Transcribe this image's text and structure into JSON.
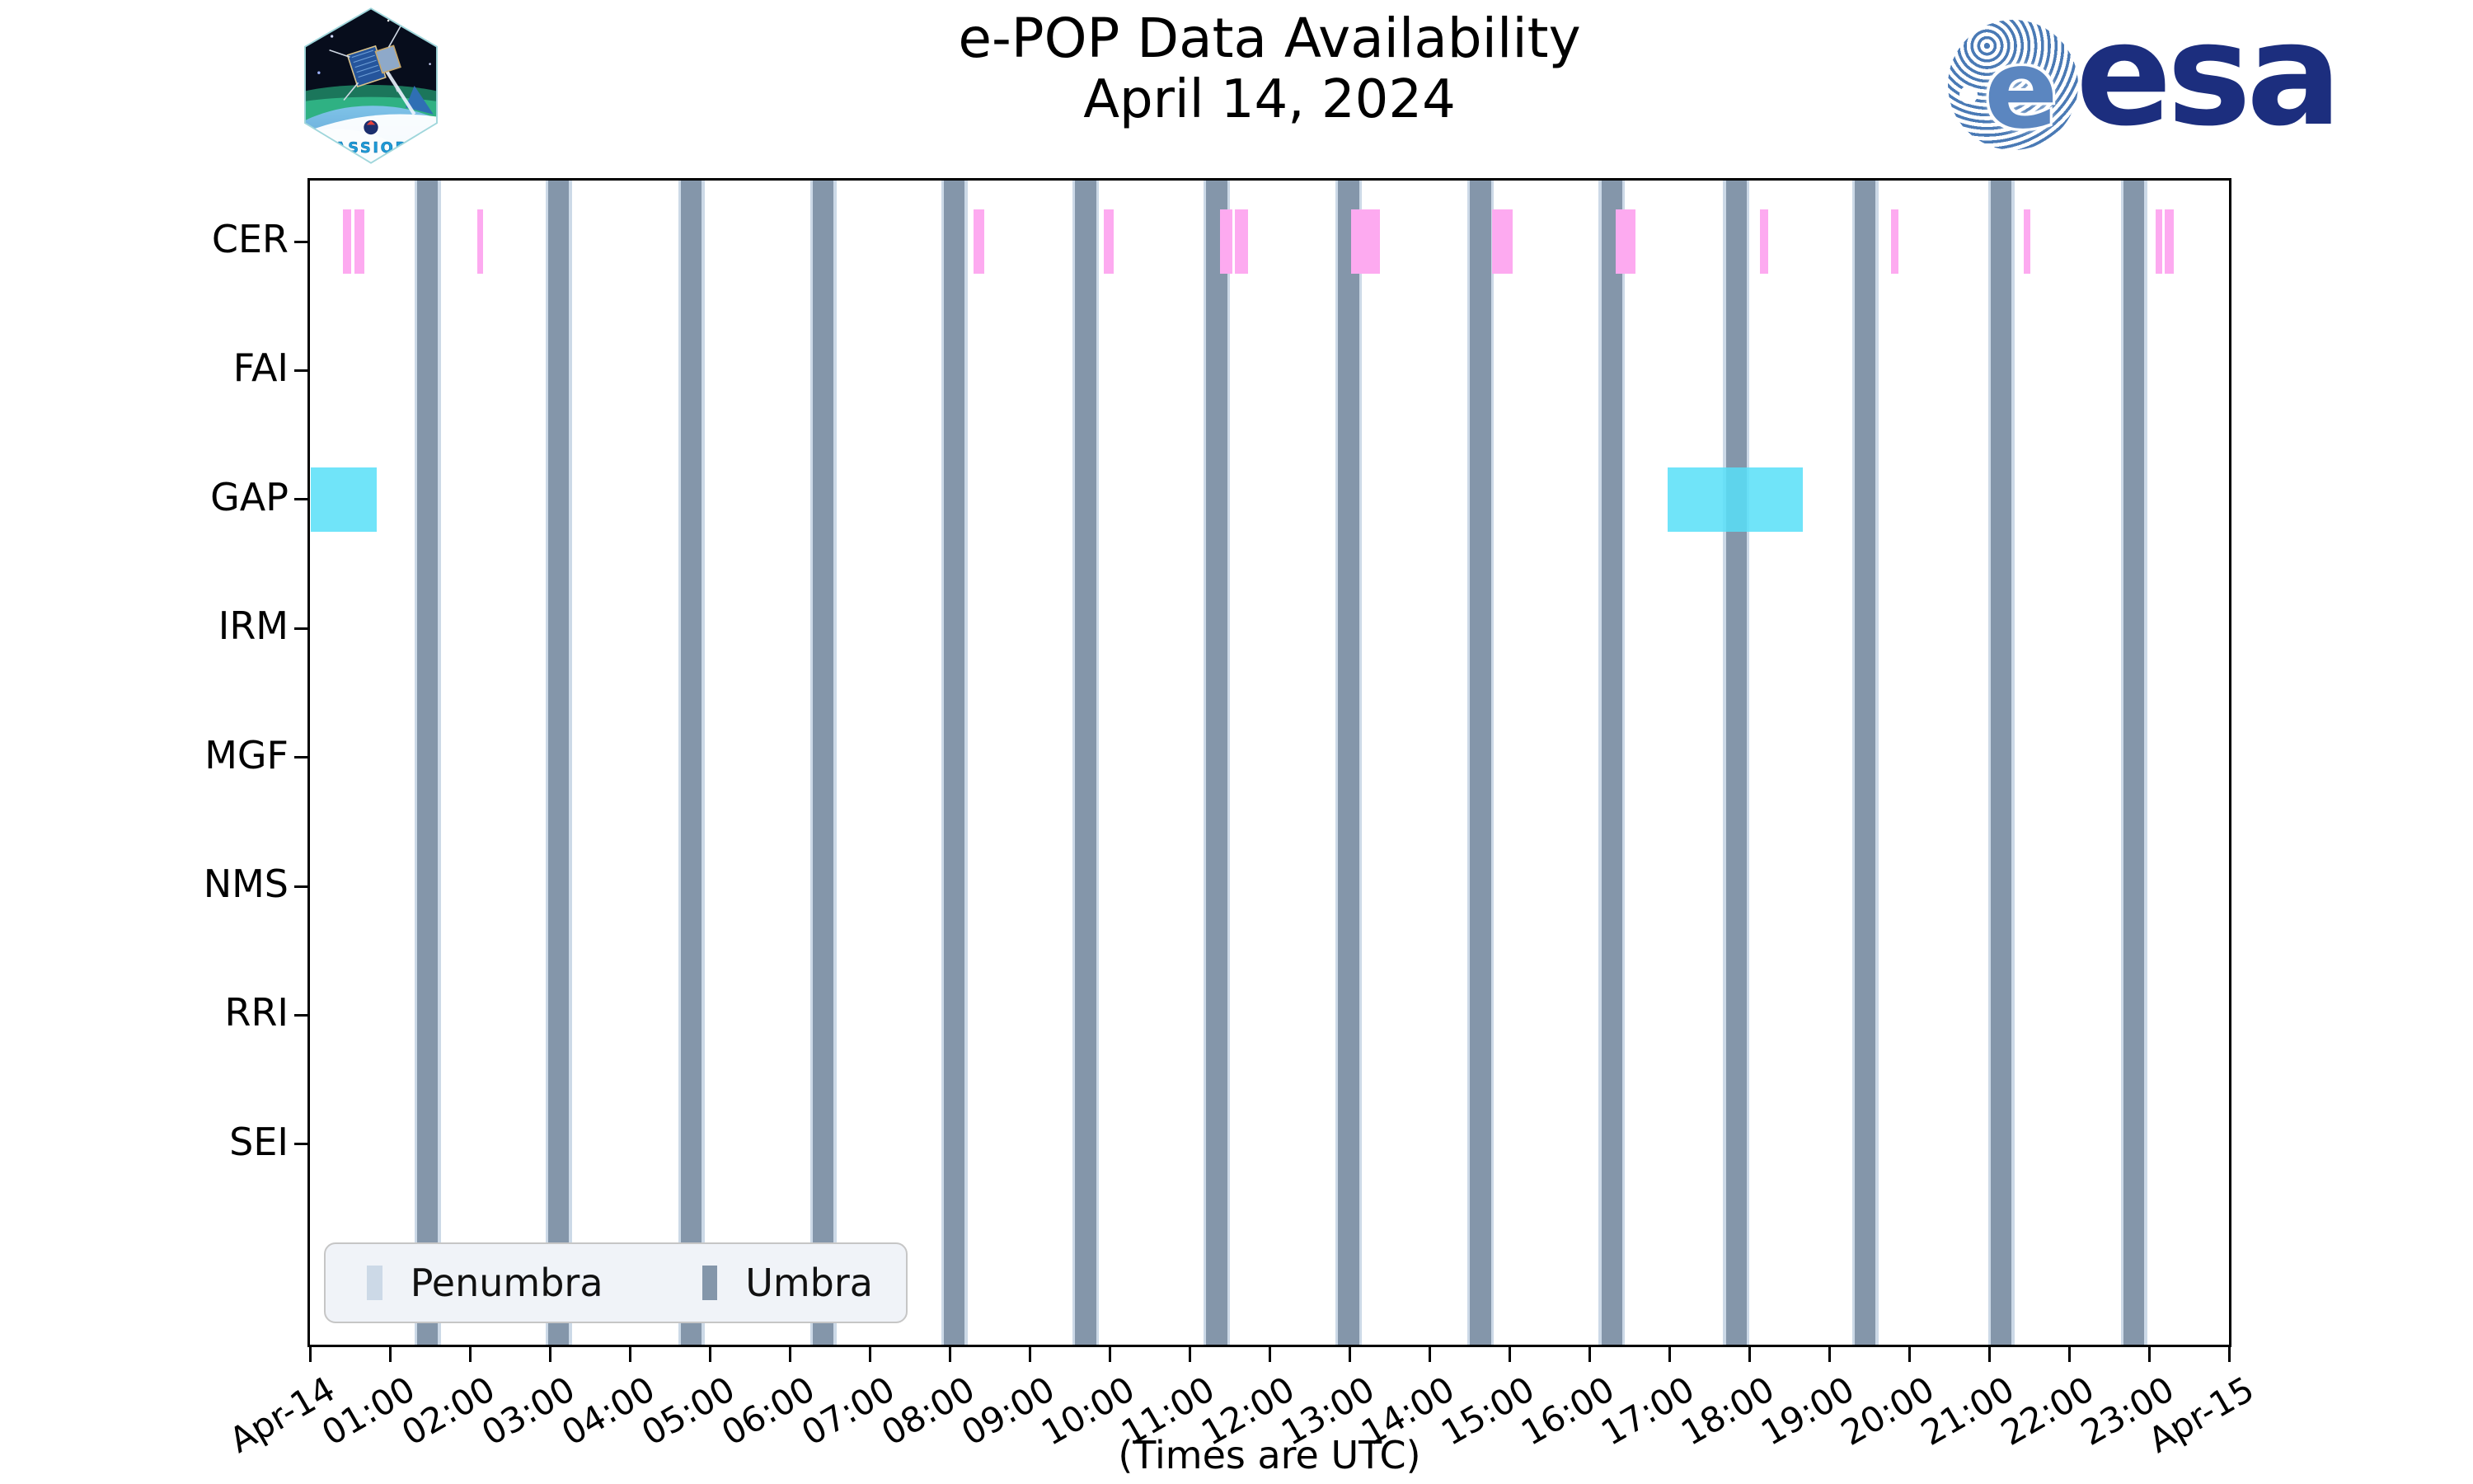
{
  "header": {
    "title_line1": "e-POP Data Availability",
    "title_line2": "April 14, 2024"
  },
  "logos": {
    "cassiope_text": "CASSIOPE",
    "esa_text": "esa",
    "esa_globe_letter": "e",
    "esa_navy": "#1c2e7e",
    "esa_stripe_blue": "#4a7ab5"
  },
  "chart_data": {
    "type": "bar",
    "variant": "timeline-availability-gantt",
    "title": "e-POP Data Availability",
    "subtitle": "April 14, 2024",
    "x_axis": {
      "caption": "(Times are UTC)",
      "range_hours": [
        0,
        24
      ],
      "tick_labels": [
        "Apr-14",
        "01:00",
        "02:00",
        "03:00",
        "04:00",
        "05:00",
        "06:00",
        "07:00",
        "08:00",
        "09:00",
        "10:00",
        "11:00",
        "12:00",
        "13:00",
        "14:00",
        "15:00",
        "16:00",
        "17:00",
        "18:00",
        "19:00",
        "20:00",
        "21:00",
        "22:00",
        "23:00",
        "Apr-15"
      ]
    },
    "rows": [
      "CER",
      "FAI",
      "GAP",
      "IRM",
      "MGF",
      "NMS",
      "RRI",
      "SEI"
    ],
    "eclipse": {
      "umbra_color": "#8496aa",
      "penumbra_color": "#ccd9e7",
      "umbra_width_hours": 0.26,
      "penumbra_width_hours": 0.33,
      "umbra_centers_utc_hours": [
        1.47,
        3.11,
        4.77,
        6.42,
        8.06,
        9.7,
        11.34,
        12.99,
        14.64,
        16.28,
        17.84,
        19.45,
        21.15,
        22.81
      ]
    },
    "availability": [
      {
        "row": "CER",
        "color": "#fdaaf0",
        "opacity": 1,
        "intervals_utc_hours": [
          [
            0.41,
            0.52
          ],
          [
            0.56,
            0.68
          ],
          [
            2.09,
            2.16
          ],
          [
            8.3,
            8.43
          ],
          [
            9.93,
            10.05
          ],
          [
            11.38,
            11.54
          ],
          [
            11.57,
            11.73
          ],
          [
            13.02,
            13.38
          ],
          [
            14.78,
            15.04
          ],
          [
            16.33,
            16.58
          ],
          [
            18.13,
            18.24
          ],
          [
            19.77,
            19.87
          ],
          [
            21.43,
            21.52
          ],
          [
            23.08,
            23.16
          ],
          [
            23.2,
            23.31
          ]
        ]
      },
      {
        "row": "GAP",
        "color": "#57dff8",
        "opacity": 0.85,
        "intervals_utc_hours": [
          [
            0.01,
            0.83
          ],
          [
            16.98,
            18.67
          ]
        ]
      }
    ],
    "legend": [
      {
        "label": "Penumbra",
        "color": "#ccd9e7"
      },
      {
        "label": "Umbra",
        "color": "#8496aa"
      }
    ]
  }
}
